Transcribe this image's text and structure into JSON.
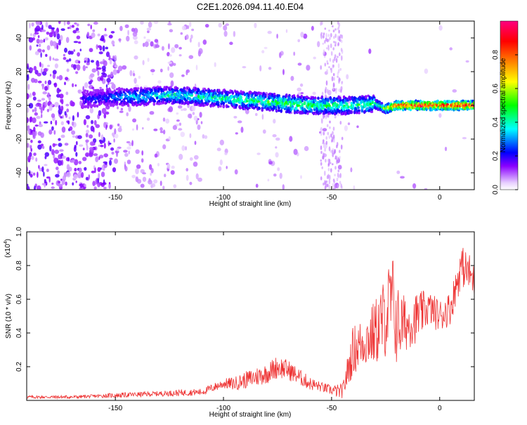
{
  "chart_data": [
    {
      "type": "heatmap",
      "title": "C2E1.2026.094.11.40.E04",
      "xlabel": "Height of straight line (km)",
      "ylabel": "Frequency (Hz)",
      "xlim": [
        -191,
        16
      ],
      "ylim": [
        -50,
        50
      ],
      "xticks": [
        -150,
        -100,
        -50,
        0
      ],
      "yticks": [
        -40,
        -20,
        0,
        20,
        40
      ],
      "colorbar": {
        "label": "Normalized spectral amplitude",
        "range": [
          0,
          1
        ],
        "ticks": [
          0.0,
          0.2,
          0.4,
          0.6,
          0.8
        ],
        "colors": [
          "#ffffff",
          "#7f00ff",
          "#0000ff",
          "#00ffff",
          "#00ff00",
          "#ffff00",
          "#ff8000",
          "#ff0000",
          "#ff0080"
        ]
      },
      "ridge": {
        "description_points_x": [
          -160,
          -150,
          -140,
          -130,
          -120,
          -110,
          -100,
          -90,
          -80,
          -70,
          -60,
          -50,
          -40,
          -30,
          -25,
          -20,
          -10,
          0,
          10,
          16
        ],
        "center_freq": [
          4,
          5,
          5,
          6,
          6,
          5,
          4,
          3,
          2,
          1,
          0,
          0,
          0,
          1,
          -2,
          0,
          0,
          0,
          0,
          0
        ],
        "peak_amplitude": [
          0.25,
          0.3,
          0.4,
          0.4,
          0.45,
          0.45,
          0.45,
          0.5,
          0.5,
          0.55,
          0.5,
          0.5,
          0.5,
          0.5,
          0.6,
          0.9,
          1.0,
          1.0,
          1.0,
          1.0
        ]
      }
    },
    {
      "type": "line",
      "xlabel": "Height of straight line (km)",
      "ylabel": "SNR (10 * v/v)",
      "y_multiplier_label": "(x10",
      "y_multiplier_exp": "4",
      "y_multiplier_close": ")",
      "xlim": [
        -191,
        16
      ],
      "ylim": [
        0,
        1.0
      ],
      "xticks": [
        -150,
        -100,
        -50,
        0
      ],
      "yticks": [
        0.2,
        0.4,
        0.6,
        0.8,
        1.0
      ],
      "color": "#ee3333",
      "series": [
        {
          "x": [
            -191,
            -180,
            -170,
            -160,
            -150,
            -140,
            -130,
            -120,
            -110,
            -100,
            -95,
            -90,
            -85,
            -80,
            -75,
            -70,
            -65,
            -60,
            -55,
            -50,
            -45,
            -40,
            -35,
            -30,
            -25,
            -22,
            -20,
            -15,
            -10,
            -5,
            0,
            5,
            10,
            14,
            16
          ],
          "values": [
            0.02,
            0.02,
            0.02,
            0.025,
            0.03,
            0.035,
            0.04,
            0.045,
            0.05,
            0.1,
            0.1,
            0.12,
            0.14,
            0.16,
            0.2,
            0.18,
            0.14,
            0.1,
            0.08,
            0.06,
            0.05,
            0.3,
            0.35,
            0.4,
            0.5,
            0.6,
            0.45,
            0.45,
            0.5,
            0.55,
            0.5,
            0.55,
            0.8,
            0.75,
            0.7
          ],
          "noise": [
            0.01,
            0.01,
            0.01,
            0.01,
            0.015,
            0.015,
            0.015,
            0.02,
            0.02,
            0.03,
            0.04,
            0.05,
            0.06,
            0.06,
            0.07,
            0.06,
            0.05,
            0.04,
            0.03,
            0.03,
            0.05,
            0.15,
            0.15,
            0.2,
            0.25,
            0.3,
            0.25,
            0.15,
            0.15,
            0.1,
            0.1,
            0.1,
            0.12,
            0.12,
            0.1
          ]
        }
      ]
    }
  ]
}
